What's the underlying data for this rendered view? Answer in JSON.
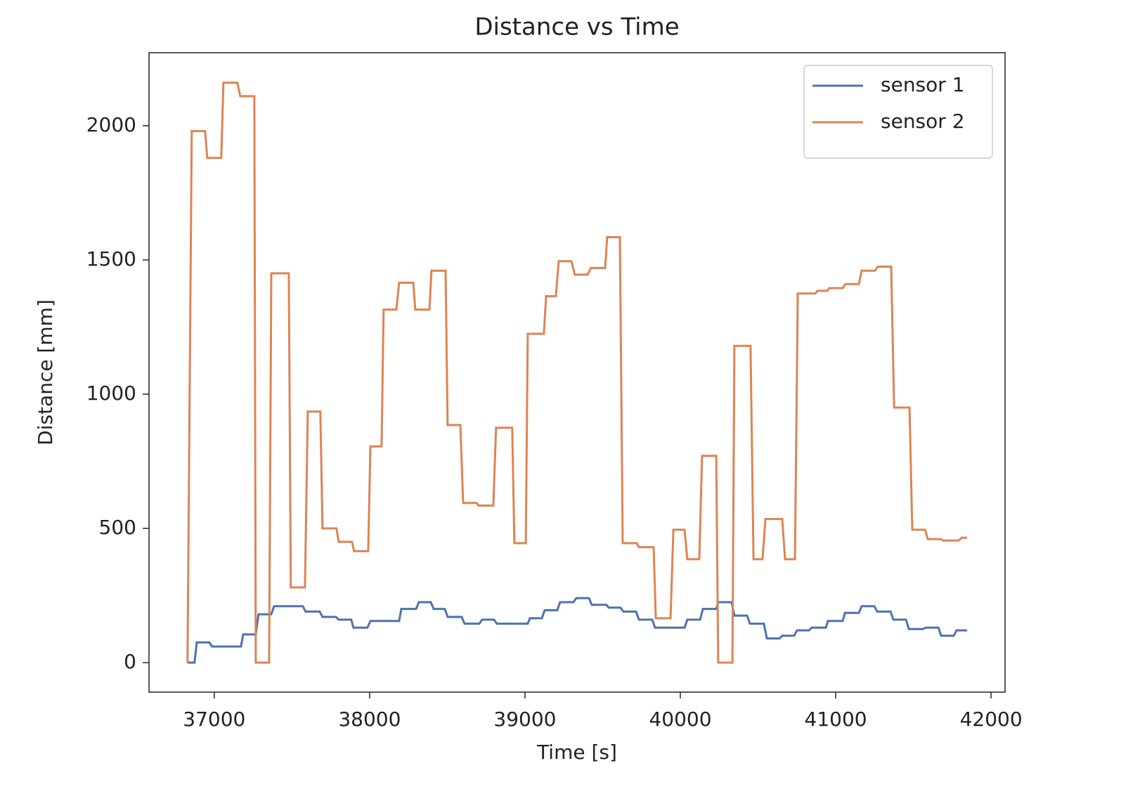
{
  "chart_data": {
    "type": "line",
    "title": "Distance vs Time",
    "x_label": "Time [s]",
    "y_label": "Distance [mm]",
    "xlim": [
      36580,
      42090
    ],
    "ylim": [
      -110,
      2272
    ],
    "xticks": [
      37000,
      38000,
      39000,
      40000,
      41000,
      42000
    ],
    "yticks": [
      0,
      500,
      1000,
      1500,
      2000
    ],
    "grid": false,
    "legend": "upper right",
    "series": [
      {
        "name": "sensor 1",
        "color": "#4c72b0",
        "x": [
          36828,
          36873,
          36887,
          36968,
          36986,
          37172,
          37186,
          37267,
          37285,
          37367,
          37385,
          37570,
          37588,
          37679,
          37697,
          37783,
          37801,
          37882,
          37896,
          37986,
          38005,
          38190,
          38204,
          38299,
          38317,
          38394,
          38412,
          38484,
          38502,
          38593,
          38611,
          38706,
          38724,
          38801,
          38819,
          39018,
          39032,
          39109,
          39127,
          39208,
          39226,
          39312,
          39330,
          39412,
          39430,
          39525,
          39538,
          39615,
          39633,
          39715,
          39733,
          39819,
          39837,
          40027,
          40045,
          40127,
          40145,
          40231,
          40244,
          40330,
          40348,
          40430,
          40448,
          40538,
          40557,
          40638,
          40656,
          40733,
          40751,
          40828,
          40846,
          40937,
          40950,
          41045,
          41059,
          41149,
          41167,
          41249,
          41267,
          41353,
          41371,
          41452,
          41471,
          41561,
          41579,
          41661,
          41679,
          41760,
          41778,
          41846
        ],
        "values": [
          0,
          0,
          75,
          75,
          60,
          60,
          105,
          105,
          180,
          180,
          210,
          210,
          190,
          190,
          170,
          170,
          160,
          160,
          130,
          130,
          155,
          155,
          200,
          200,
          225,
          225,
          200,
          200,
          170,
          170,
          145,
          145,
          160,
          160,
          145,
          145,
          165,
          165,
          195,
          195,
          225,
          225,
          240,
          240,
          215,
          215,
          205,
          205,
          190,
          190,
          160,
          160,
          130,
          130,
          160,
          160,
          200,
          200,
          225,
          225,
          175,
          175,
          145,
          145,
          90,
          90,
          100,
          100,
          120,
          120,
          130,
          130,
          155,
          155,
          185,
          185,
          210,
          210,
          190,
          190,
          160,
          160,
          125,
          125,
          130,
          130,
          100,
          100,
          120,
          120
        ]
      },
      {
        "name": "sensor 2",
        "color": "#dd8452",
        "x": [
          36828,
          36855,
          36941,
          36955,
          37045,
          37059,
          37149,
          37167,
          37258,
          37267,
          37353,
          37367,
          37480,
          37493,
          37584,
          37602,
          37683,
          37697,
          37787,
          37801,
          37887,
          37900,
          37991,
          38005,
          38077,
          38090,
          38172,
          38190,
          38281,
          38294,
          38385,
          38398,
          38489,
          38502,
          38584,
          38602,
          38688,
          38701,
          38796,
          38814,
          38918,
          38932,
          39005,
          39018,
          39122,
          39136,
          39199,
          39217,
          39299,
          39321,
          39403,
          39425,
          39516,
          39529,
          39611,
          39629,
          39719,
          39733,
          39828,
          39842,
          39937,
          39955,
          40027,
          40045,
          40122,
          40140,
          40231,
          40244,
          40335,
          40348,
          40452,
          40471,
          40529,
          40548,
          40656,
          40674,
          40738,
          40756,
          40869,
          40882,
          40946,
          40959,
          41045,
          41063,
          41149,
          41167,
          41253,
          41271,
          41357,
          41376,
          41475,
          41493,
          41575,
          41593,
          41674,
          41692,
          41792,
          41810,
          41846
        ],
        "values": [
          0,
          1980,
          1980,
          1880,
          1880,
          2160,
          2160,
          2110,
          2110,
          0,
          0,
          1450,
          1450,
          280,
          280,
          935,
          935,
          500,
          500,
          450,
          450,
          415,
          415,
          805,
          805,
          1315,
          1315,
          1415,
          1415,
          1315,
          1315,
          1460,
          1460,
          885,
          885,
          595,
          595,
          585,
          585,
          875,
          875,
          445,
          445,
          1225,
          1225,
          1365,
          1365,
          1495,
          1495,
          1445,
          1445,
          1470,
          1470,
          1585,
          1585,
          445,
          445,
          430,
          430,
          165,
          165,
          495,
          495,
          385,
          385,
          770,
          770,
          0,
          0,
          1180,
          1180,
          385,
          385,
          535,
          535,
          385,
          385,
          1375,
          1375,
          1385,
          1385,
          1395,
          1395,
          1410,
          1410,
          1460,
          1460,
          1475,
          1475,
          950,
          950,
          495,
          495,
          460,
          460,
          455,
          455,
          465,
          465
        ]
      }
    ]
  }
}
